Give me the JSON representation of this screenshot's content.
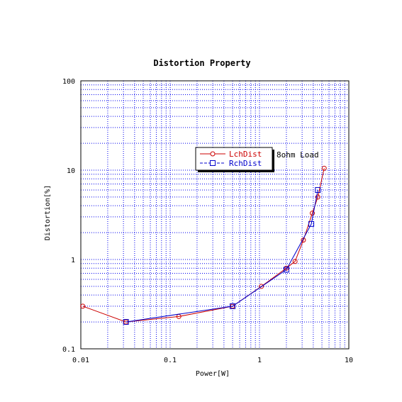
{
  "chart_data": {
    "type": "line",
    "title": "Distortion Property",
    "xlabel": "Power[W]",
    "ylabel": "Distortion[%]",
    "x_scale": "log",
    "y_scale": "log",
    "xlim": [
      0.01,
      10
    ],
    "ylim": [
      0.1,
      100
    ],
    "x_ticks": [
      "0.01",
      "0.1",
      "1",
      "10"
    ],
    "y_ticks": [
      "0.1",
      "1",
      "10",
      "100"
    ],
    "grid": true,
    "legend_position": "center-right",
    "annotation": "8ohm Load",
    "series": [
      {
        "name": "LchDist",
        "color": "#cc0000",
        "marker": "circle",
        "x": [
          0.0105,
          0.032,
          0.125,
          0.5,
          1.05,
          2.0,
          2.5,
          3.1,
          3.9,
          4.5,
          5.3
        ],
        "y": [
          0.3,
          0.2,
          0.23,
          0.3,
          0.5,
          0.8,
          0.95,
          1.65,
          3.3,
          5.0,
          10.5
        ]
      },
      {
        "name": "RchDist",
        "color": "#0000cc",
        "marker": "square",
        "x": [
          0.032,
          0.5,
          2.0,
          3.8,
          4.5
        ],
        "y": [
          0.2,
          0.3,
          0.77,
          2.5,
          6.0
        ]
      }
    ]
  }
}
